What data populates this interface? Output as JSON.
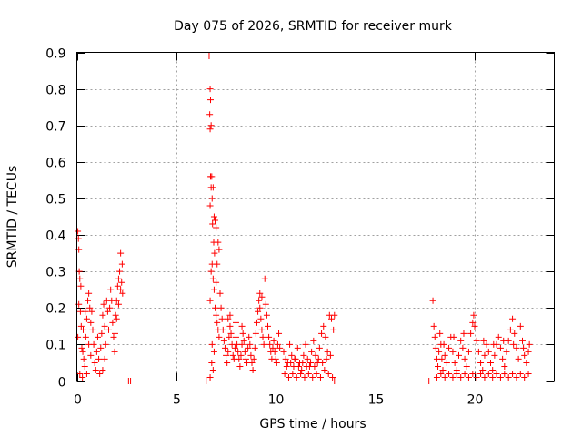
{
  "chart_data": {
    "type": "scatter",
    "title": "Day 075 of 2026, SRMTID for receiver murk",
    "xlabel": "GPS time / hours",
    "ylabel": "SRMTID / TECUs",
    "xlim": [
      0,
      24
    ],
    "ylim": [
      0,
      0.9
    ],
    "xticks": [
      0,
      5,
      10,
      15,
      20
    ],
    "xtick_labels": [
      "0",
      "5",
      "10",
      "15",
      "20"
    ],
    "yticks": [
      0,
      0.1,
      0.2,
      0.3,
      0.4,
      0.5,
      0.6,
      0.7,
      0.8,
      0.9
    ],
    "ytick_labels": [
      "0",
      "0.1",
      "0.2",
      "0.3",
      "0.4",
      "0.5",
      "0.6",
      "0.7",
      "0.8",
      "0.9"
    ],
    "grid": true,
    "marker": "+",
    "color": "#ff0000",
    "series": [
      {
        "name": "SRMTID",
        "points": [
          [
            0.05,
            0.41
          ],
          [
            0.08,
            0.39
          ],
          [
            0.1,
            0.36
          ],
          [
            0.12,
            0.3
          ],
          [
            0.15,
            0.28
          ],
          [
            0.2,
            0.26
          ],
          [
            0.1,
            0.21
          ],
          [
            0.18,
            0.19
          ],
          [
            0.22,
            0.15
          ],
          [
            0.05,
            0.12
          ],
          [
            0.25,
            0.09
          ],
          [
            0.3,
            0.08
          ],
          [
            0.35,
            0.06
          ],
          [
            0.4,
            0.04
          ],
          [
            0.15,
            0.02
          ],
          [
            0.28,
            0.01
          ],
          [
            0.45,
            0.12
          ],
          [
            0.5,
            0.17
          ],
          [
            0.55,
            0.22
          ],
          [
            0.6,
            0.24
          ],
          [
            0.65,
            0.2
          ],
          [
            0.7,
            0.16
          ],
          [
            0.75,
            0.19
          ],
          [
            0.8,
            0.14
          ],
          [
            0.85,
            0.1
          ],
          [
            0.9,
            0.05
          ],
          [
            0.95,
            0.03
          ],
          [
            1.0,
            0.08
          ],
          [
            1.05,
            0.12
          ],
          [
            1.1,
            0.06
          ],
          [
            1.15,
            0.02
          ],
          [
            1.2,
            0.09
          ],
          [
            1.25,
            0.13
          ],
          [
            1.3,
            0.18
          ],
          [
            1.35,
            0.21
          ],
          [
            1.4,
            0.15
          ],
          [
            1.45,
            0.1
          ],
          [
            1.5,
            0.22
          ],
          [
            1.55,
            0.19
          ],
          [
            1.6,
            0.14
          ],
          [
            1.65,
            0.2
          ],
          [
            1.7,
            0.25
          ],
          [
            1.75,
            0.22
          ],
          [
            1.8,
            0.16
          ],
          [
            1.85,
            0.12
          ],
          [
            1.9,
            0.08
          ],
          [
            1.95,
            0.18
          ],
          [
            2.0,
            0.22
          ],
          [
            2.05,
            0.26
          ],
          [
            2.1,
            0.28
          ],
          [
            2.15,
            0.3
          ],
          [
            2.2,
            0.25
          ],
          [
            2.25,
            0.27
          ],
          [
            2.3,
            0.24
          ],
          [
            2.2,
            0.35
          ],
          [
            2.28,
            0.32
          ],
          [
            2.1,
            0.21
          ],
          [
            2.0,
            0.17
          ],
          [
            1.92,
            0.13
          ],
          [
            0.6,
            0.1
          ],
          [
            0.7,
            0.07
          ],
          [
            0.5,
            0.02
          ],
          [
            1.3,
            0.03
          ],
          [
            1.4,
            0.06
          ],
          [
            0.32,
            0.14
          ],
          [
            0.42,
            0.19
          ],
          [
            2.6,
            0.0
          ],
          [
            2.7,
            0.0
          ],
          [
            6.5,
            0.0
          ],
          [
            6.65,
            0.89
          ],
          [
            6.7,
            0.8
          ],
          [
            6.72,
            0.77
          ],
          [
            6.68,
            0.73
          ],
          [
            6.7,
            0.69
          ],
          [
            6.75,
            0.7
          ],
          [
            6.72,
            0.56
          ],
          [
            6.78,
            0.56
          ],
          [
            6.75,
            0.53
          ],
          [
            6.85,
            0.53
          ],
          [
            6.8,
            0.5
          ],
          [
            6.7,
            0.48
          ],
          [
            6.82,
            0.43
          ],
          [
            6.9,
            0.45
          ],
          [
            6.95,
            0.44
          ],
          [
            7.0,
            0.42
          ],
          [
            6.88,
            0.38
          ],
          [
            6.92,
            0.35
          ],
          [
            6.8,
            0.32
          ],
          [
            6.75,
            0.3
          ],
          [
            6.85,
            0.28
          ],
          [
            6.9,
            0.25
          ],
          [
            6.7,
            0.22
          ],
          [
            6.95,
            0.2
          ],
          [
            7.0,
            0.18
          ],
          [
            7.05,
            0.16
          ],
          [
            7.1,
            0.14
          ],
          [
            7.15,
            0.12
          ],
          [
            6.8,
            0.1
          ],
          [
            6.9,
            0.08
          ],
          [
            6.78,
            0.05
          ],
          [
            6.85,
            0.03
          ],
          [
            6.7,
            0.01
          ],
          [
            7.05,
            0.32
          ],
          [
            7.1,
            0.38
          ],
          [
            7.15,
            0.36
          ],
          [
            7.0,
            0.27
          ],
          [
            7.2,
            0.24
          ],
          [
            7.25,
            0.2
          ],
          [
            7.3,
            0.17
          ],
          [
            7.35,
            0.14
          ],
          [
            7.4,
            0.11
          ],
          [
            7.45,
            0.09
          ],
          [
            7.5,
            0.07
          ],
          [
            7.55,
            0.05
          ],
          [
            7.6,
            0.08
          ],
          [
            7.65,
            0.12
          ],
          [
            7.7,
            0.15
          ],
          [
            7.75,
            0.13
          ],
          [
            7.8,
            0.1
          ],
          [
            7.85,
            0.07
          ],
          [
            7.9,
            0.06
          ],
          [
            7.95,
            0.09
          ],
          [
            8.0,
            0.12
          ],
          [
            8.05,
            0.1
          ],
          [
            8.1,
            0.08
          ],
          [
            8.15,
            0.06
          ],
          [
            8.2,
            0.04
          ],
          [
            8.25,
            0.07
          ],
          [
            8.3,
            0.1
          ],
          [
            8.35,
            0.13
          ],
          [
            8.4,
            0.11
          ],
          [
            8.45,
            0.08
          ],
          [
            8.5,
            0.06
          ],
          [
            8.55,
            0.05
          ],
          [
            8.6,
            0.09
          ],
          [
            8.65,
            0.12
          ],
          [
            8.7,
            0.1
          ],
          [
            8.75,
            0.07
          ],
          [
            8.8,
            0.05
          ],
          [
            8.85,
            0.03
          ],
          [
            8.9,
            0.06
          ],
          [
            8.95,
            0.09
          ],
          [
            9.0,
            0.13
          ],
          [
            9.05,
            0.16
          ],
          [
            9.1,
            0.19
          ],
          [
            9.15,
            0.22
          ],
          [
            9.2,
            0.2
          ],
          [
            9.25,
            0.17
          ],
          [
            9.3,
            0.14
          ],
          [
            9.35,
            0.12
          ],
          [
            9.4,
            0.1
          ],
          [
            9.45,
            0.28
          ],
          [
            9.5,
            0.21
          ],
          [
            9.55,
            0.18
          ],
          [
            9.6,
            0.15
          ],
          [
            9.65,
            0.12
          ],
          [
            9.7,
            0.1
          ],
          [
            9.75,
            0.08
          ],
          [
            9.8,
            0.06
          ],
          [
            9.85,
            0.09
          ],
          [
            9.9,
            0.11
          ],
          [
            9.95,
            0.08
          ],
          [
            10.0,
            0.06
          ],
          [
            10.05,
            0.05
          ],
          [
            10.1,
            0.1
          ],
          [
            10.15,
            0.13
          ],
          [
            10.2,
            0.09
          ],
          [
            7.6,
            0.17
          ],
          [
            7.7,
            0.18
          ],
          [
            8.0,
            0.16
          ],
          [
            8.3,
            0.15
          ],
          [
            9.2,
            0.24
          ],
          [
            9.3,
            0.23
          ],
          [
            10.4,
            0.08
          ],
          [
            10.5,
            0.06
          ],
          [
            10.6,
            0.05
          ],
          [
            10.7,
            0.1
          ],
          [
            10.8,
            0.07
          ],
          [
            10.9,
            0.04
          ],
          [
            11.0,
            0.06
          ],
          [
            11.1,
            0.09
          ],
          [
            11.2,
            0.05
          ],
          [
            11.3,
            0.03
          ],
          [
            11.4,
            0.07
          ],
          [
            11.5,
            0.1
          ],
          [
            11.6,
            0.06
          ],
          [
            11.7,
            0.04
          ],
          [
            11.8,
            0.08
          ],
          [
            11.9,
            0.11
          ],
          [
            12.0,
            0.07
          ],
          [
            12.1,
            0.05
          ],
          [
            12.2,
            0.09
          ],
          [
            12.3,
            0.13
          ],
          [
            12.4,
            0.15
          ],
          [
            12.5,
            0.12
          ],
          [
            12.6,
            0.08
          ],
          [
            12.7,
            0.18
          ],
          [
            12.8,
            0.17
          ],
          [
            12.9,
            0.14
          ],
          [
            12.95,
            0.18
          ],
          [
            10.45,
            0.02
          ],
          [
            10.65,
            0.01
          ],
          [
            10.85,
            0.02
          ],
          [
            11.05,
            0.01
          ],
          [
            11.25,
            0.02
          ],
          [
            11.45,
            0.01
          ],
          [
            11.65,
            0.02
          ],
          [
            11.85,
            0.01
          ],
          [
            12.05,
            0.02
          ],
          [
            12.25,
            0.01
          ],
          [
            12.45,
            0.03
          ],
          [
            12.65,
            0.02
          ],
          [
            12.85,
            0.01
          ],
          [
            10.55,
            0.04
          ],
          [
            10.75,
            0.05
          ],
          [
            10.95,
            0.06
          ],
          [
            11.15,
            0.04
          ],
          [
            11.35,
            0.05
          ],
          [
            11.55,
            0.04
          ],
          [
            11.75,
            0.05
          ],
          [
            11.95,
            0.04
          ],
          [
            12.15,
            0.06
          ],
          [
            12.35,
            0.05
          ],
          [
            12.55,
            0.06
          ],
          [
            12.75,
            0.07
          ],
          [
            12.95,
            0.0
          ],
          [
            17.7,
            0.0
          ],
          [
            17.9,
            0.22
          ],
          [
            17.95,
            0.15
          ],
          [
            18.0,
            0.12
          ],
          [
            18.05,
            0.09
          ],
          [
            18.1,
            0.06
          ],
          [
            18.15,
            0.04
          ],
          [
            18.2,
            0.08
          ],
          [
            18.25,
            0.13
          ],
          [
            18.3,
            0.1
          ],
          [
            18.35,
            0.06
          ],
          [
            18.4,
            0.03
          ],
          [
            18.5,
            0.07
          ],
          [
            18.6,
            0.05
          ],
          [
            18.7,
            0.09
          ],
          [
            18.8,
            0.12
          ],
          [
            18.9,
            0.08
          ],
          [
            19.0,
            0.05
          ],
          [
            19.1,
            0.03
          ],
          [
            19.2,
            0.07
          ],
          [
            19.3,
            0.11
          ],
          [
            19.4,
            0.09
          ],
          [
            19.5,
            0.06
          ],
          [
            19.6,
            0.04
          ],
          [
            19.7,
            0.08
          ],
          [
            19.8,
            0.13
          ],
          [
            19.9,
            0.16
          ],
          [
            19.95,
            0.18
          ],
          [
            20.0,
            0.15
          ],
          [
            20.1,
            0.11
          ],
          [
            20.2,
            0.08
          ],
          [
            20.3,
            0.05
          ],
          [
            20.4,
            0.03
          ],
          [
            20.5,
            0.07
          ],
          [
            20.6,
            0.1
          ],
          [
            20.7,
            0.08
          ],
          [
            20.8,
            0.05
          ],
          [
            20.9,
            0.03
          ],
          [
            21.0,
            0.07
          ],
          [
            21.1,
            0.1
          ],
          [
            21.2,
            0.12
          ],
          [
            21.3,
            0.09
          ],
          [
            21.4,
            0.06
          ],
          [
            21.5,
            0.04
          ],
          [
            21.6,
            0.08
          ],
          [
            21.7,
            0.11
          ],
          [
            21.8,
            0.14
          ],
          [
            21.9,
            0.17
          ],
          [
            22.0,
            0.13
          ],
          [
            22.1,
            0.09
          ],
          [
            22.2,
            0.06
          ],
          [
            22.3,
            0.15
          ],
          [
            22.4,
            0.11
          ],
          [
            22.5,
            0.07
          ],
          [
            22.6,
            0.05
          ],
          [
            22.7,
            0.08
          ],
          [
            22.75,
            0.1
          ],
          [
            18.1,
            0.01
          ],
          [
            18.3,
            0.02
          ],
          [
            18.5,
            0.01
          ],
          [
            18.7,
            0.02
          ],
          [
            18.9,
            0.01
          ],
          [
            19.1,
            0.02
          ],
          [
            19.3,
            0.01
          ],
          [
            19.5,
            0.02
          ],
          [
            19.7,
            0.01
          ],
          [
            19.9,
            0.02
          ],
          [
            20.1,
            0.01
          ],
          [
            20.3,
            0.02
          ],
          [
            20.5,
            0.01
          ],
          [
            20.7,
            0.02
          ],
          [
            20.9,
            0.01
          ],
          [
            21.1,
            0.02
          ],
          [
            21.3,
            0.01
          ],
          [
            21.5,
            0.02
          ],
          [
            21.7,
            0.01
          ],
          [
            21.9,
            0.02
          ],
          [
            22.1,
            0.01
          ],
          [
            22.3,
            0.02
          ],
          [
            22.5,
            0.01
          ],
          [
            22.7,
            0.02
          ],
          [
            18.45,
            0.1
          ],
          [
            18.95,
            0.12
          ],
          [
            19.45,
            0.13
          ],
          [
            20.45,
            0.11
          ],
          [
            20.95,
            0.1
          ],
          [
            21.45,
            0.11
          ],
          [
            21.95,
            0.1
          ],
          [
            22.45,
            0.09
          ]
        ]
      }
    ]
  }
}
